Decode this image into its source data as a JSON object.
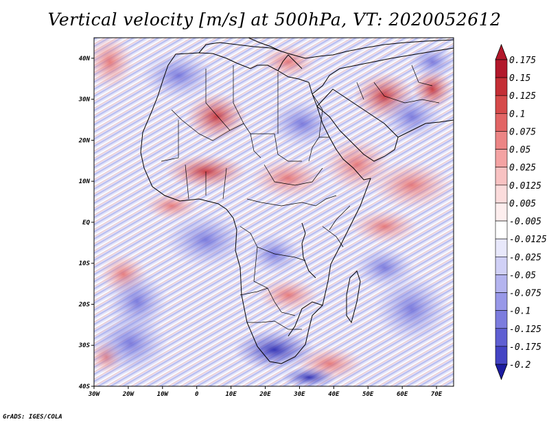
{
  "title": "Vertical velocity [m/s] at 500hPa, VT: 2020052612",
  "footer": "GrADS: IGES/COLA",
  "map": {
    "projection": "lat-lon",
    "lon_range": [
      -30,
      75
    ],
    "lat_range": [
      -40,
      45
    ],
    "lon_ticks": [
      {
        "value": -30,
        "label": "30W"
      },
      {
        "value": -20,
        "label": "20W"
      },
      {
        "value": -10,
        "label": "10W"
      },
      {
        "value": 0,
        "label": "0"
      },
      {
        "value": 10,
        "label": "10E"
      },
      {
        "value": 20,
        "label": "20E"
      },
      {
        "value": 30,
        "label": "30E"
      },
      {
        "value": 40,
        "label": "40E"
      },
      {
        "value": 50,
        "label": "50E"
      },
      {
        "value": 60,
        "label": "60E"
      },
      {
        "value": 70,
        "label": "70E"
      }
    ],
    "lat_ticks": [
      {
        "value": 40,
        "label": "40N"
      },
      {
        "value": 30,
        "label": "30N"
      },
      {
        "value": 20,
        "label": "20N"
      },
      {
        "value": 10,
        "label": "10N"
      },
      {
        "value": 0,
        "label": "EQ"
      },
      {
        "value": -10,
        "label": "10S"
      },
      {
        "value": -20,
        "label": "20S"
      },
      {
        "value": -30,
        "label": "30S"
      },
      {
        "value": -40,
        "label": "40S"
      }
    ]
  },
  "colorbar": {
    "levels": [
      {
        "label": "0.175",
        "color": "#b2182b"
      },
      {
        "label": "0.15",
        "color": "#c42e35"
      },
      {
        "label": "0.125",
        "color": "#d64a4a"
      },
      {
        "label": "0.1",
        "color": "#e26565"
      },
      {
        "label": "0.075",
        "color": "#ec8585"
      },
      {
        "label": "0.05",
        "color": "#f4a3a3"
      },
      {
        "label": "0.025",
        "color": "#f8c2c2"
      },
      {
        "label": "0.0125",
        "color": "#fbdcdc"
      },
      {
        "label": "0.005",
        "color": "#fdeeee"
      },
      {
        "label": "-0.005",
        "color": "#ffffff"
      },
      {
        "label": "-0.0125",
        "color": "#e8e8fb"
      },
      {
        "label": "-0.025",
        "color": "#d0d0f6"
      },
      {
        "label": "-0.05",
        "color": "#b4b4ef"
      },
      {
        "label": "-0.075",
        "color": "#9898e8"
      },
      {
        "label": "-0.1",
        "color": "#7c7cde"
      },
      {
        "label": "-0.125",
        "color": "#5f5fd2"
      },
      {
        "label": "-0.175",
        "color": "#4444c4"
      },
      {
        "label": "-0.2",
        "color": "#2d2db2"
      }
    ],
    "top_triangle_color": "#b2182b",
    "bottom_triangle_color": "#1c1ca0"
  }
}
